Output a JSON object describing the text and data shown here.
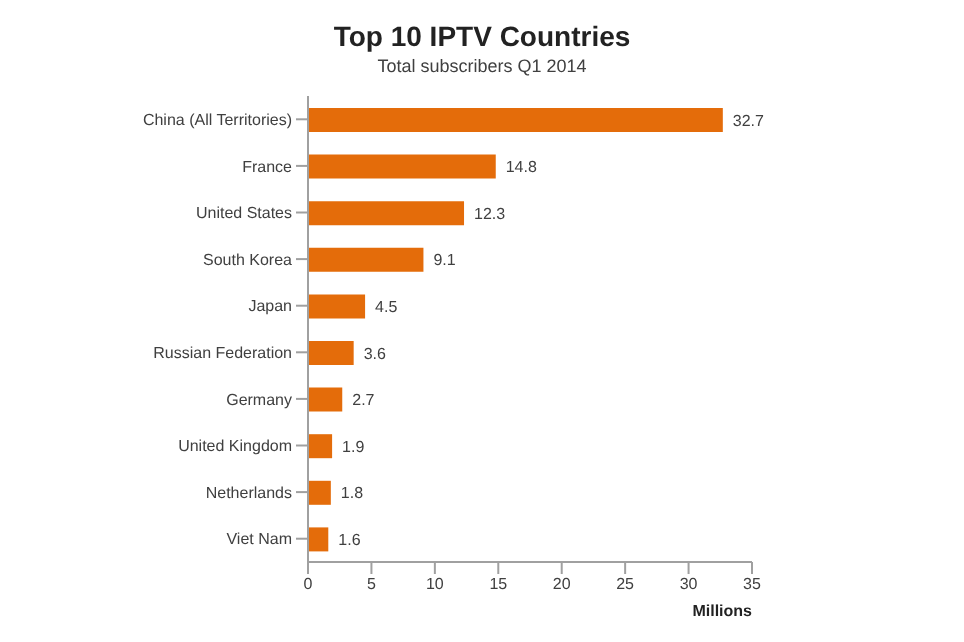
{
  "chart_data": {
    "type": "bar",
    "orientation": "horizontal",
    "title": "Top 10 IPTV Countries",
    "subtitle": "Total subscribers Q1 2014",
    "xlabel": "Millions",
    "categories": [
      "China (All Territories)",
      "France",
      "United States",
      "South Korea",
      "Japan",
      "Russian Federation",
      "Germany",
      "United Kingdom",
      "Netherlands",
      "Viet Nam"
    ],
    "values": [
      32.7,
      14.8,
      12.3,
      9.1,
      4.5,
      3.6,
      2.7,
      1.9,
      1.8,
      1.6
    ],
    "color": "#e46c0a",
    "xlim": [
      0,
      35
    ],
    "xticks": [
      0,
      5,
      10,
      15,
      20,
      25,
      30,
      35
    ],
    "grid": false,
    "data_labels": true
  }
}
